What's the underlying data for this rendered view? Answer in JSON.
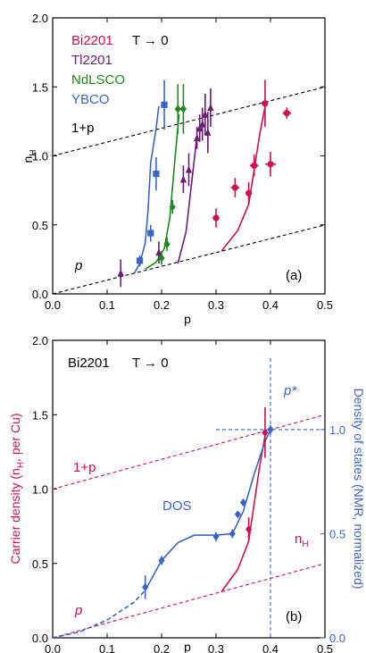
{
  "chart_data": [
    {
      "type": "scatter",
      "panel_label": "(a)",
      "annotation": "T → 0",
      "xlabel": "p",
      "ylabel": "n_H",
      "xlim": [
        0,
        0.5
      ],
      "ylim": [
        0,
        2.0
      ],
      "xticks": [
        "0.0",
        "0.1",
        "0.2",
        "0.3",
        "0.4",
        "0.5"
      ],
      "yticks": [
        "0.0",
        "0.5",
        "1.0",
        "1.5",
        "2.0"
      ],
      "x_ticks": [
        0,
        0.1,
        0.2,
        0.3,
        0.4,
        0.5
      ],
      "y_ticks": [
        0,
        0.5,
        1.0,
        1.5,
        2.0
      ],
      "legend_placement": "top-left",
      "reference_lines": [
        {
          "label": "1+p",
          "points": [
            [
              0,
              1.0
            ],
            [
              0.5,
              1.5
            ]
          ],
          "color": "#000000"
        },
        {
          "label": "p",
          "points": [
            [
              0,
              0
            ],
            [
              0.5,
              0.5
            ]
          ],
          "color": "#000000"
        }
      ],
      "series": [
        {
          "name": "Bi2201",
          "color": "#d0104c",
          "marker": "circle",
          "points": [
            [
              0.3,
              0.55,
              0.006,
              0.07
            ],
            [
              0.335,
              0.77,
              0.008,
              0.07
            ],
            [
              0.36,
              0.73,
              0.004,
              0.08
            ],
            [
              0.37,
              0.93,
              0.008,
              0.08
            ],
            [
              0.39,
              1.38,
              0.004,
              0.17
            ],
            [
              0.4,
              0.94,
              0.01,
              0.09
            ],
            [
              0.43,
              1.31,
              0.008,
              0.04
            ]
          ],
          "curve": [
            [
              0.31,
              0.31
            ],
            [
              0.34,
              0.46
            ],
            [
              0.36,
              0.65
            ],
            [
              0.37,
              0.9
            ],
            [
              0.38,
              1.15
            ],
            [
              0.39,
              1.36
            ]
          ]
        },
        {
          "name": "Tl2201",
          "color": "#6e1a77",
          "marker": "triangle",
          "points": [
            [
              0.125,
              0.15,
              0,
              0.1
            ],
            [
              0.195,
              0.3,
              0,
              0.08
            ],
            [
              0.24,
              0.83,
              0,
              0.1
            ],
            [
              0.25,
              0.9,
              0,
              0.12
            ],
            [
              0.265,
              1.13,
              0,
              0.08
            ],
            [
              0.27,
              1.2,
              0,
              0.1
            ],
            [
              0.275,
              1.23,
              0,
              0.12
            ],
            [
              0.28,
              1.3,
              0,
              0.15
            ],
            [
              0.285,
              1.17,
              0,
              0.15
            ],
            [
              0.29,
              1.35,
              0,
              0.14
            ]
          ],
          "curve": [
            [
              0.23,
              0.22
            ],
            [
              0.245,
              0.45
            ],
            [
              0.255,
              0.8
            ],
            [
              0.265,
              1.15
            ]
          ]
        },
        {
          "name": "NdLSCO",
          "color": "#1a8a1a",
          "marker": "diamond",
          "points": [
            [
              0.2,
              0.26,
              0,
              0.05
            ],
            [
              0.21,
              0.36,
              0,
              0.05
            ],
            [
              0.22,
              0.63,
              0,
              0.05
            ],
            [
              0.23,
              1.34,
              0,
              0.18
            ],
            [
              0.24,
              1.34,
              0,
              0.18
            ]
          ],
          "curve": [
            [
              0.17,
              0.18
            ],
            [
              0.19,
              0.23
            ],
            [
              0.205,
              0.33
            ],
            [
              0.215,
              0.55
            ],
            [
              0.225,
              1.0
            ],
            [
              0.232,
              1.3
            ]
          ]
        },
        {
          "name": "YBCO",
          "color": "#3a65c8",
          "marker": "square",
          "points": [
            [
              0.16,
              0.24,
              0,
              0.04
            ],
            [
              0.18,
              0.44,
              0,
              0.06
            ],
            [
              0.19,
              0.87,
              0,
              0.12
            ],
            [
              0.205,
              1.37,
              0,
              0.18
            ]
          ],
          "curve": [
            [
              0.15,
              0.15
            ],
            [
              0.16,
              0.22
            ],
            [
              0.17,
              0.37
            ],
            [
              0.175,
              0.6
            ],
            [
              0.18,
              0.95
            ],
            [
              0.19,
              1.2
            ],
            [
              0.195,
              1.36
            ]
          ]
        }
      ]
    },
    {
      "type": "line",
      "panel_label": "(b)",
      "title_label": "Bi2201",
      "annotation": "T → 0",
      "xlabel": "p",
      "ylabel": "Carrier density (n_H, per Cu)",
      "y2label": "Density of states (NMR, normalized)",
      "xlim": [
        0,
        0.5
      ],
      "ylim": [
        0,
        2.0
      ],
      "y2lim": [
        0,
        2.0
      ],
      "xticks": [
        "0.0",
        "0.1",
        "0.2",
        "0.3",
        "0.4",
        "0.5"
      ],
      "yticks": [
        "0.0",
        "0.5",
        "1.0",
        "1.5",
        "2.0"
      ],
      "y2ticks": [
        "0.0",
        "0.5",
        "1.0"
      ],
      "x_ticks": [
        0,
        0.1,
        0.2,
        0.3,
        0.4,
        0.5
      ],
      "y_ticks": [
        0,
        0.5,
        1.0,
        1.5,
        2.0
      ],
      "y2_ticks": [
        0,
        0.5,
        1.0
      ],
      "y2_scale": 1.4,
      "pstar": 0.4,
      "pstar_label": "p*",
      "dos_label": "DOS",
      "nh_label": "n_H",
      "reference_lines": [
        {
          "label": "1+p",
          "points": [
            [
              0,
              1.0
            ],
            [
              0.5,
              1.5
            ]
          ],
          "color": "#d0104c"
        },
        {
          "label": "p",
          "points": [
            [
              0,
              0
            ],
            [
              0.5,
              0.5
            ]
          ],
          "color": "#d0104c"
        }
      ],
      "series": [
        {
          "name": "n_H",
          "color": "#d0104c",
          "points": [
            [
              0.36,
              0.73,
              0,
              0.08
            ],
            [
              0.39,
              1.38,
              0,
              0.17
            ]
          ],
          "curve": [
            [
              0.31,
              0.31
            ],
            [
              0.34,
              0.46
            ],
            [
              0.36,
              0.65
            ],
            [
              0.37,
              0.9
            ],
            [
              0.38,
              1.15
            ],
            [
              0.39,
              1.36
            ]
          ]
        },
        {
          "name": "DOS",
          "color": "#3a65c8",
          "points": [
            [
              0.17,
              0.34,
              0,
              0.08
            ],
            [
              0.2,
              0.52,
              0,
              0.03
            ],
            [
              0.3,
              0.68,
              0,
              0.03
            ],
            [
              0.33,
              0.7,
              0,
              0.03
            ],
            [
              0.34,
              0.83,
              0,
              0.02
            ],
            [
              0.35,
              0.91,
              0,
              0.02
            ],
            [
              0.4,
              1.4,
              0,
              0.03
            ]
          ],
          "curve_dashed": [
            [
              0,
              0
            ],
            [
              0.05,
              0.04
            ],
            [
              0.1,
              0.12
            ],
            [
              0.15,
              0.24
            ],
            [
              0.17,
              0.32
            ]
          ],
          "curve": [
            [
              0.17,
              0.32
            ],
            [
              0.2,
              0.52
            ],
            [
              0.23,
              0.64
            ],
            [
              0.26,
              0.69
            ],
            [
              0.3,
              0.69
            ],
            [
              0.33,
              0.7
            ],
            [
              0.35,
              0.85
            ],
            [
              0.37,
              1.1
            ],
            [
              0.39,
              1.32
            ],
            [
              0.4,
              1.4
            ]
          ]
        }
      ]
    }
  ]
}
